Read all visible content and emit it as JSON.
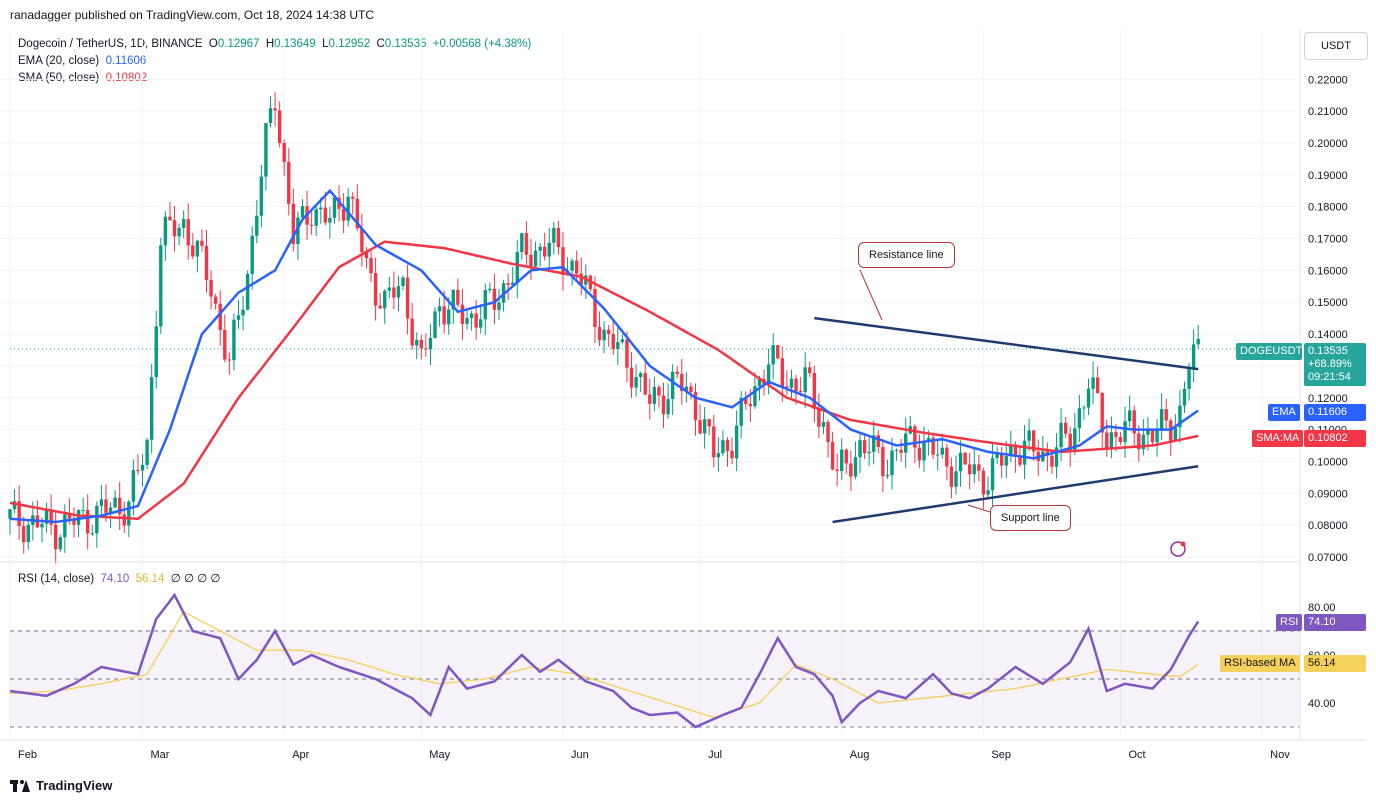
{
  "publisher_line": "ranadagger published on TradingView.com, Oct 18, 2024 14:38 UTC",
  "legend": {
    "symbol": "Dogecoin / TetherUS, 1D, BINANCE",
    "o_label": "O",
    "o": "0.12967",
    "h_label": "H",
    "h": "0.13649",
    "l_label": "L",
    "l": "0.12952",
    "c_label": "C",
    "c": "0.13535",
    "change": "+0.00568 (+4.38%)",
    "ema_label": "EMA (20, close)",
    "ema_value": "0.11606",
    "sma_label": "SMA (50, close)",
    "sma_value": "0.10802"
  },
  "currency_button": "USDT",
  "price_tags": {
    "symbol": "DOGEUSDT",
    "price": "0.13535",
    "pct": "+68.89%",
    "countdown": "09:21:54",
    "ema_tag": "EMA",
    "ema_value": "0.11606",
    "sma_tag": "SMA:MA",
    "sma_value": "0.10802",
    "rsi_tag": "RSI",
    "rsi_value": "74.10",
    "rsi_ma_tag": "RSI-based MA",
    "rsi_ma_value": "56.14"
  },
  "rsi_legend": {
    "label": "RSI (14, close)",
    "value": "74.10",
    "ma_value": "56.14",
    "extra": "∅ ∅ ∅ ∅"
  },
  "annotations": {
    "resistance": "Resistance line",
    "support": "Support line"
  },
  "branding": "TradingView",
  "colors": {
    "up": "#089981",
    "down": "#f23645",
    "ema": "#2962ff",
    "sma": "#f23645",
    "rsi": "#7e57c2",
    "rsi_ma": "#f5d05a",
    "trendline": "#1f3a6e",
    "price_tag": "#26a69a"
  },
  "chart_data": {
    "type": "candlestick",
    "price_axis": {
      "ticks": [
        0.07,
        0.08,
        0.09,
        0.1,
        0.11,
        0.12,
        0.13,
        0.14,
        0.15,
        0.16,
        0.17,
        0.18,
        0.19,
        0.2,
        0.21,
        0.22
      ],
      "tick_labels": [
        "0.07000",
        "0.08000",
        "0.09000",
        "0.10000",
        "0.11000",
        "0.12000",
        "0.13000",
        "0.14000",
        "0.15000",
        "0.16000",
        "0.17000",
        "0.18000",
        "0.19000",
        "0.20000",
        "0.21000",
        "0.22000"
      ]
    },
    "time_axis": {
      "months": [
        "Feb",
        "Mar",
        "Apr",
        "May",
        "Jun",
        "Jul",
        "Aug",
        "Sep",
        "Oct",
        "Nov"
      ],
      "month_start_day": [
        0,
        29,
        60,
        90,
        121,
        151,
        182,
        213,
        243,
        274
      ]
    },
    "ema_anchors": [
      [
        0,
        0.082
      ],
      [
        10,
        0.081
      ],
      [
        20,
        0.083
      ],
      [
        28,
        0.086
      ],
      [
        35,
        0.11
      ],
      [
        42,
        0.14
      ],
      [
        50,
        0.153
      ],
      [
        58,
        0.16
      ],
      [
        64,
        0.176
      ],
      [
        70,
        0.185
      ],
      [
        80,
        0.168
      ],
      [
        90,
        0.16
      ],
      [
        98,
        0.147
      ],
      [
        106,
        0.15
      ],
      [
        114,
        0.16
      ],
      [
        121,
        0.161
      ],
      [
        130,
        0.148
      ],
      [
        140,
        0.13
      ],
      [
        150,
        0.12
      ],
      [
        158,
        0.117
      ],
      [
        166,
        0.125
      ],
      [
        175,
        0.12
      ],
      [
        184,
        0.11
      ],
      [
        194,
        0.105
      ],
      [
        204,
        0.107
      ],
      [
        214,
        0.103
      ],
      [
        224,
        0.101
      ],
      [
        234,
        0.105
      ],
      [
        240,
        0.111
      ],
      [
        246,
        0.11
      ],
      [
        254,
        0.11
      ],
      [
        260,
        0.116
      ]
    ],
    "sma_anchors": [
      [
        0,
        0.087
      ],
      [
        15,
        0.083
      ],
      [
        28,
        0.082
      ],
      [
        38,
        0.093
      ],
      [
        50,
        0.12
      ],
      [
        62,
        0.142
      ],
      [
        72,
        0.161
      ],
      [
        82,
        0.169
      ],
      [
        95,
        0.167
      ],
      [
        110,
        0.162
      ],
      [
        125,
        0.158
      ],
      [
        140,
        0.147
      ],
      [
        155,
        0.135
      ],
      [
        170,
        0.12
      ],
      [
        184,
        0.113
      ],
      [
        200,
        0.109
      ],
      [
        214,
        0.106
      ],
      [
        230,
        0.103
      ],
      [
        250,
        0.105
      ],
      [
        260,
        0.108
      ]
    ],
    "price_anchors": [
      [
        0,
        0.082
      ],
      [
        10,
        0.079
      ],
      [
        20,
        0.084
      ],
      [
        26,
        0.087
      ],
      [
        30,
        0.105
      ],
      [
        33,
        0.17
      ],
      [
        38,
        0.175
      ],
      [
        44,
        0.155
      ],
      [
        48,
        0.13
      ],
      [
        52,
        0.16
      ],
      [
        56,
        0.2
      ],
      [
        58,
        0.215
      ],
      [
        62,
        0.17
      ],
      [
        66,
        0.18
      ],
      [
        70,
        0.175
      ],
      [
        74,
        0.185
      ],
      [
        78,
        0.16
      ],
      [
        82,
        0.15
      ],
      [
        86,
        0.155
      ],
      [
        90,
        0.13
      ],
      [
        94,
        0.15
      ],
      [
        100,
        0.145
      ],
      [
        106,
        0.15
      ],
      [
        112,
        0.165
      ],
      [
        118,
        0.168
      ],
      [
        124,
        0.16
      ],
      [
        130,
        0.14
      ],
      [
        136,
        0.13
      ],
      [
        140,
        0.118
      ],
      [
        146,
        0.125
      ],
      [
        150,
        0.118
      ],
      [
        154,
        0.102
      ],
      [
        158,
        0.107
      ],
      [
        162,
        0.12
      ],
      [
        166,
        0.132
      ],
      [
        170,
        0.125
      ],
      [
        174,
        0.125
      ],
      [
        178,
        0.112
      ],
      [
        181,
        0.095
      ],
      [
        186,
        0.105
      ],
      [
        192,
        0.1
      ],
      [
        198,
        0.108
      ],
      [
        204,
        0.1
      ],
      [
        210,
        0.097
      ],
      [
        214,
        0.095
      ],
      [
        220,
        0.105
      ],
      [
        226,
        0.102
      ],
      [
        232,
        0.107
      ],
      [
        236,
        0.125
      ],
      [
        240,
        0.108
      ],
      [
        246,
        0.11
      ],
      [
        250,
        0.108
      ],
      [
        256,
        0.115
      ],
      [
        258,
        0.13
      ],
      [
        260,
        0.135
      ]
    ],
    "resistance_line": {
      "from": [
        176,
        0.145
      ],
      "to": [
        260,
        0.129
      ]
    },
    "support_line": {
      "from": [
        180,
        0.081
      ],
      "to": [
        260,
        0.0985
      ]
    },
    "rsi_axis": {
      "ticks": [
        40,
        60,
        80
      ],
      "tick_labels": [
        "40.00",
        "60.00",
        "80.00"
      ],
      "levels": [
        30,
        50,
        70
      ]
    },
    "rsi_anchors": [
      [
        0,
        45
      ],
      [
        8,
        43
      ],
      [
        14,
        48
      ],
      [
        20,
        55
      ],
      [
        28,
        52
      ],
      [
        32,
        75
      ],
      [
        36,
        85
      ],
      [
        40,
        70
      ],
      [
        46,
        67
      ],
      [
        50,
        50
      ],
      [
        54,
        58
      ],
      [
        58,
        70
      ],
      [
        62,
        56
      ],
      [
        66,
        60
      ],
      [
        72,
        55
      ],
      [
        80,
        50
      ],
      [
        88,
        42
      ],
      [
        92,
        35
      ],
      [
        96,
        55
      ],
      [
        100,
        46
      ],
      [
        106,
        49
      ],
      [
        112,
        60
      ],
      [
        116,
        53
      ],
      [
        120,
        58
      ],
      [
        126,
        49
      ],
      [
        132,
        45
      ],
      [
        136,
        38
      ],
      [
        140,
        35
      ],
      [
        146,
        36
      ],
      [
        150,
        30
      ],
      [
        156,
        35
      ],
      [
        160,
        38
      ],
      [
        164,
        52
      ],
      [
        168,
        67
      ],
      [
        172,
        55
      ],
      [
        176,
        52
      ],
      [
        180,
        43
      ],
      [
        182,
        32
      ],
      [
        186,
        40
      ],
      [
        190,
        45
      ],
      [
        196,
        42
      ],
      [
        202,
        52
      ],
      [
        206,
        44
      ],
      [
        210,
        42
      ],
      [
        214,
        46
      ],
      [
        220,
        55
      ],
      [
        226,
        48
      ],
      [
        232,
        57
      ],
      [
        236,
        71
      ],
      [
        240,
        45
      ],
      [
        244,
        48
      ],
      [
        250,
        46
      ],
      [
        254,
        54
      ],
      [
        258,
        68
      ],
      [
        260,
        74
      ]
    ],
    "rsi_ma_anchors": [
      [
        0,
        44
      ],
      [
        10,
        45
      ],
      [
        20,
        48
      ],
      [
        30,
        52
      ],
      [
        38,
        78
      ],
      [
        46,
        70
      ],
      [
        54,
        62
      ],
      [
        64,
        62
      ],
      [
        74,
        58
      ],
      [
        84,
        52
      ],
      [
        94,
        48
      ],
      [
        104,
        50
      ],
      [
        114,
        55
      ],
      [
        124,
        52
      ],
      [
        134,
        46
      ],
      [
        144,
        40
      ],
      [
        154,
        34
      ],
      [
        164,
        40
      ],
      [
        172,
        56
      ],
      [
        180,
        50
      ],
      [
        190,
        40
      ],
      [
        200,
        42
      ],
      [
        210,
        44
      ],
      [
        220,
        46
      ],
      [
        230,
        50
      ],
      [
        240,
        54
      ],
      [
        250,
        52
      ],
      [
        256,
        51
      ],
      [
        260,
        56
      ]
    ]
  }
}
